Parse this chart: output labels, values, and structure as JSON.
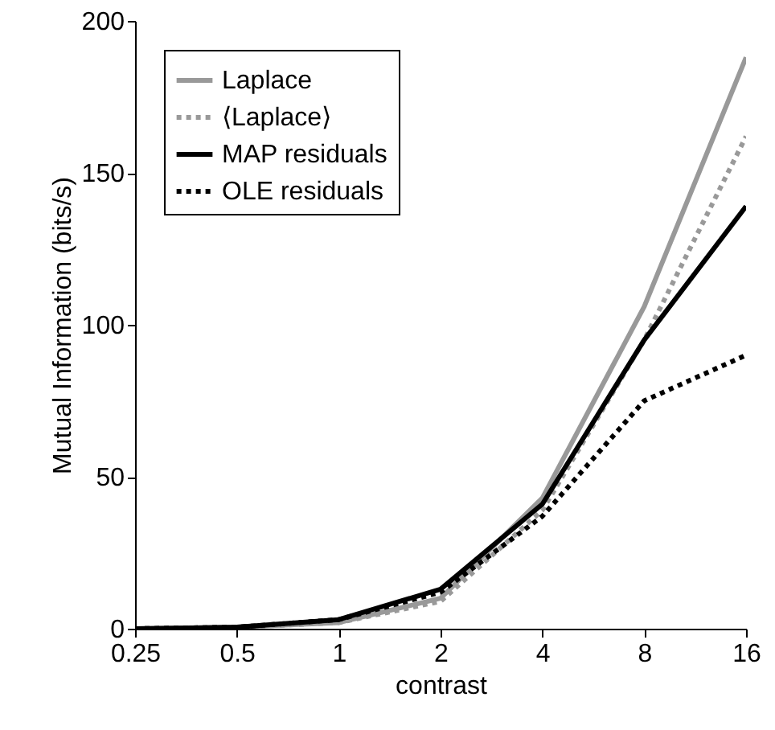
{
  "chart_data": {
    "type": "line",
    "xlabel": "contrast",
    "ylabel": "Mutual Information (bits/s)",
    "x": [
      0.25,
      0.5,
      1,
      2,
      4,
      8,
      16
    ],
    "series": [
      {
        "name": "Laplace",
        "color": "#999999",
        "line_style": "solid",
        "values": [
          0,
          0.5,
          2,
          10,
          43,
          106,
          188
        ]
      },
      {
        "name": "⟨Laplace⟩",
        "color": "#999999",
        "line_style": "dotted",
        "values": [
          0,
          0.5,
          2,
          9,
          39,
          95,
          162
        ]
      },
      {
        "name": "MAP residuals",
        "color": "#000000",
        "line_style": "solid",
        "values": [
          0,
          0.5,
          3,
          13,
          41,
          95,
          139
        ]
      },
      {
        "name": "OLE residuals",
        "color": "#000000",
        "line_style": "dotted",
        "values": [
          0,
          0.5,
          3,
          12,
          37,
          75,
          90
        ]
      }
    ],
    "log": "x",
    "xlim": [
      0.25,
      16
    ],
    "xticks": [
      0.25,
      0.5,
      1,
      2,
      4,
      8,
      16
    ],
    "ylim": [
      0,
      200
    ],
    "yticks": [
      0,
      50,
      100,
      150,
      200
    ],
    "grid": false,
    "legend": "top left"
  }
}
